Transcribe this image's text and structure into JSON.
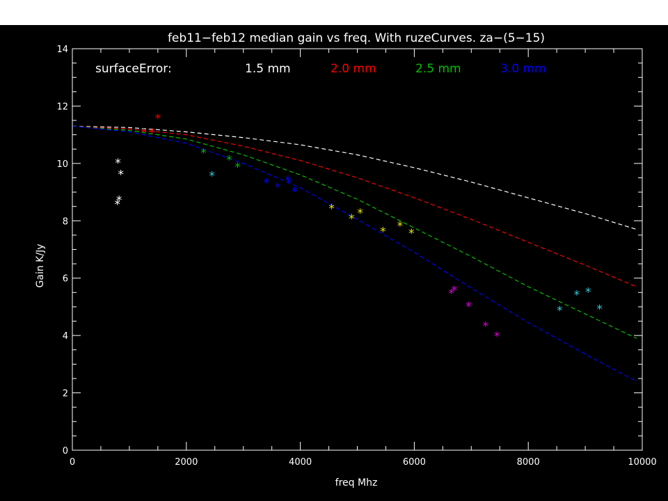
{
  "chart_data": {
    "type": "scatter",
    "title": "feb11−feb12 median gain vs freq. With ruzeCurves. za−(5−15)",
    "xlabel": "freq Mhz",
    "ylabel": "Gain K/Jy",
    "xlim": [
      0,
      10000
    ],
    "ylim": [
      0,
      14
    ],
    "xticks": [
      0,
      2000,
      4000,
      6000,
      8000,
      10000
    ],
    "yticks": [
      0,
      2,
      4,
      6,
      8,
      10,
      12,
      14
    ],
    "grid": false,
    "background": "#000000",
    "legend": {
      "title": "surfaceError:",
      "entries": [
        {
          "label": "1.5 mm",
          "color": "#ffffff"
        },
        {
          "label": "2.0 mm",
          "color": "#ff0000"
        },
        {
          "label": "2.5 mm",
          "color": "#00c000"
        },
        {
          "label": "3.0 mm",
          "color": "#0000ff"
        }
      ],
      "placement": "top-left"
    },
    "curves": [
      {
        "color": "#ffffff",
        "style": "dashed",
        "x": [
          0,
          1000,
          2000,
          3000,
          4000,
          5000,
          6000,
          7000,
          8000,
          9000,
          9900
        ],
        "y": [
          11.3,
          11.25,
          11.1,
          10.9,
          10.65,
          10.3,
          9.85,
          9.35,
          8.8,
          8.25,
          7.7
        ]
      },
      {
        "color": "#ff0000",
        "style": "dashed",
        "x": [
          0,
          1000,
          2000,
          3000,
          4000,
          5000,
          6000,
          7000,
          8000,
          9000,
          9900
        ],
        "y": [
          11.3,
          11.2,
          11.0,
          10.6,
          10.1,
          9.5,
          8.8,
          8.05,
          7.25,
          6.45,
          5.7
        ]
      },
      {
        "color": "#00c000",
        "style": "dashed",
        "x": [
          0,
          1000,
          2000,
          3000,
          4000,
          5000,
          6000,
          7000,
          8000,
          9000,
          9900
        ],
        "y": [
          11.3,
          11.15,
          10.85,
          10.3,
          9.6,
          8.75,
          7.75,
          6.75,
          5.7,
          4.75,
          3.9
        ]
      },
      {
        "color": "#0000ff",
        "style": "dashed",
        "x": [
          0,
          1000,
          2000,
          3000,
          4000,
          5000,
          6000,
          7000,
          8000,
          9000,
          9900
        ],
        "y": [
          11.3,
          11.1,
          10.7,
          10.0,
          9.15,
          8.05,
          6.9,
          5.65,
          4.45,
          3.35,
          2.4
        ]
      }
    ],
    "points": [
      {
        "x": 800,
        "y": 10.05,
        "color": "#ffffff"
      },
      {
        "x": 850,
        "y": 9.65,
        "color": "#ffffff"
      },
      {
        "x": 820,
        "y": 8.75,
        "color": "#ffffff"
      },
      {
        "x": 790,
        "y": 8.6,
        "color": "#ffffff"
      },
      {
        "x": 1250,
        "y": 11.1,
        "color": "#ff0000"
      },
      {
        "x": 1400,
        "y": 11.1,
        "color": "#ff0000"
      },
      {
        "x": 1500,
        "y": 11.6,
        "color": "#ff0000"
      },
      {
        "x": 2300,
        "y": 10.4,
        "color": "#00c000"
      },
      {
        "x": 2750,
        "y": 10.15,
        "color": "#00c000"
      },
      {
        "x": 2900,
        "y": 9.9,
        "color": "#00c000"
      },
      {
        "x": 2450,
        "y": 9.6,
        "color": "#33ccdd"
      },
      {
        "x": 3400,
        "y": 9.35,
        "color": "#0000ff"
      },
      {
        "x": 3600,
        "y": 9.2,
        "color": "#0000ff"
      },
      {
        "x": 3780,
        "y": 9.45,
        "color": "#0000ff"
      },
      {
        "x": 3800,
        "y": 9.35,
        "color": "#0000ff"
      },
      {
        "x": 3900,
        "y": 9.05,
        "color": "#0000ff"
      },
      {
        "x": 4550,
        "y": 8.45,
        "color": "#e6e600"
      },
      {
        "x": 4900,
        "y": 8.1,
        "color": "#e6e600"
      },
      {
        "x": 5050,
        "y": 8.3,
        "color": "#e6e600"
      },
      {
        "x": 5450,
        "y": 7.65,
        "color": "#e6e600"
      },
      {
        "x": 5750,
        "y": 7.85,
        "color": "#e6e600"
      },
      {
        "x": 5950,
        "y": 7.6,
        "color": "#e6e600"
      },
      {
        "x": 6650,
        "y": 5.5,
        "color": "#e000e0"
      },
      {
        "x": 6700,
        "y": 5.6,
        "color": "#e000e0"
      },
      {
        "x": 6950,
        "y": 5.05,
        "color": "#e000e0"
      },
      {
        "x": 7250,
        "y": 4.35,
        "color": "#e000e0"
      },
      {
        "x": 7450,
        "y": 4.0,
        "color": "#e000e0"
      },
      {
        "x": 8550,
        "y": 4.9,
        "color": "#33ccdd"
      },
      {
        "x": 8850,
        "y": 5.45,
        "color": "#33ccdd"
      },
      {
        "x": 9050,
        "y": 5.55,
        "color": "#33ccdd"
      },
      {
        "x": 9250,
        "y": 4.95,
        "color": "#33ccdd"
      }
    ]
  }
}
